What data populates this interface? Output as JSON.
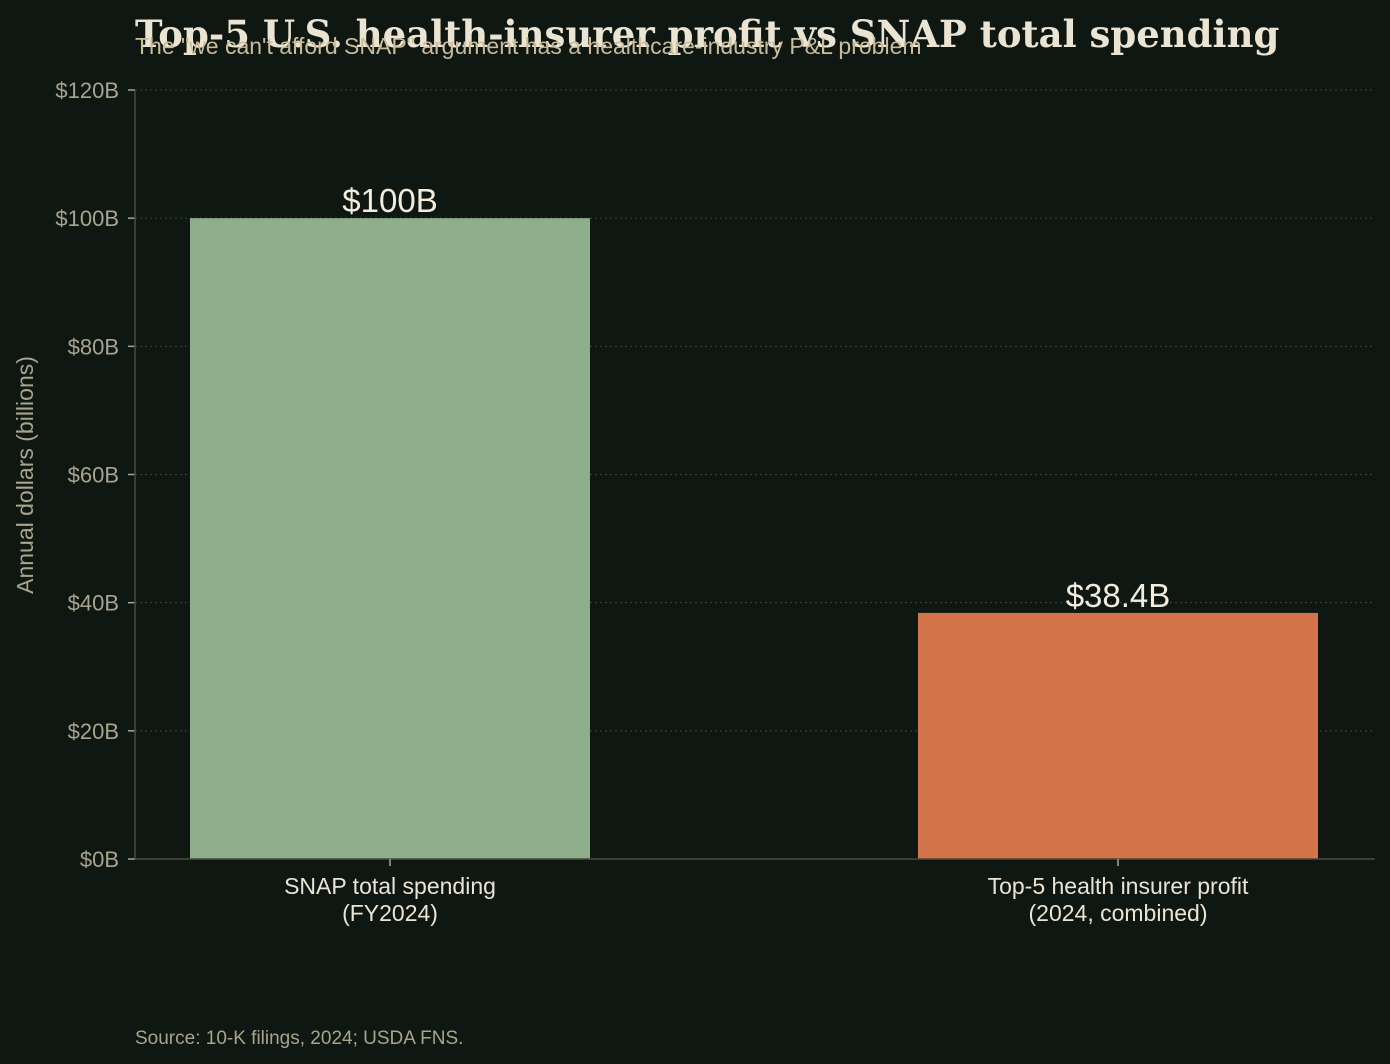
{
  "chart_data": {
    "type": "bar",
    "title": "Top-5 U.S. health-insurer profit vs SNAP total spending",
    "subtitle": "The \"we can't afford SNAP\" argument has a healthcare-industry P&L problem",
    "ylabel": "Annual dollars (billions)",
    "xlabel": "",
    "ylim": [
      0,
      120
    ],
    "yticks": [
      0,
      20,
      40,
      60,
      80,
      100,
      120
    ],
    "ytick_labels": [
      "$0B",
      "$20B",
      "$40B",
      "$60B",
      "$80B",
      "$100B",
      "$120B"
    ],
    "categories": [
      [
        "SNAP total spending",
        "(FY2024)"
      ],
      [
        "Top-5 health insurer profit",
        "(2024, combined)"
      ]
    ],
    "values": [
      100,
      38.4
    ],
    "value_labels": [
      "$100B",
      "$38.4B"
    ],
    "colors": [
      "#8fae8c",
      "#d4744a"
    ],
    "grid": true,
    "source": "Source: 10-K filings, 2024; USDA FNS."
  }
}
